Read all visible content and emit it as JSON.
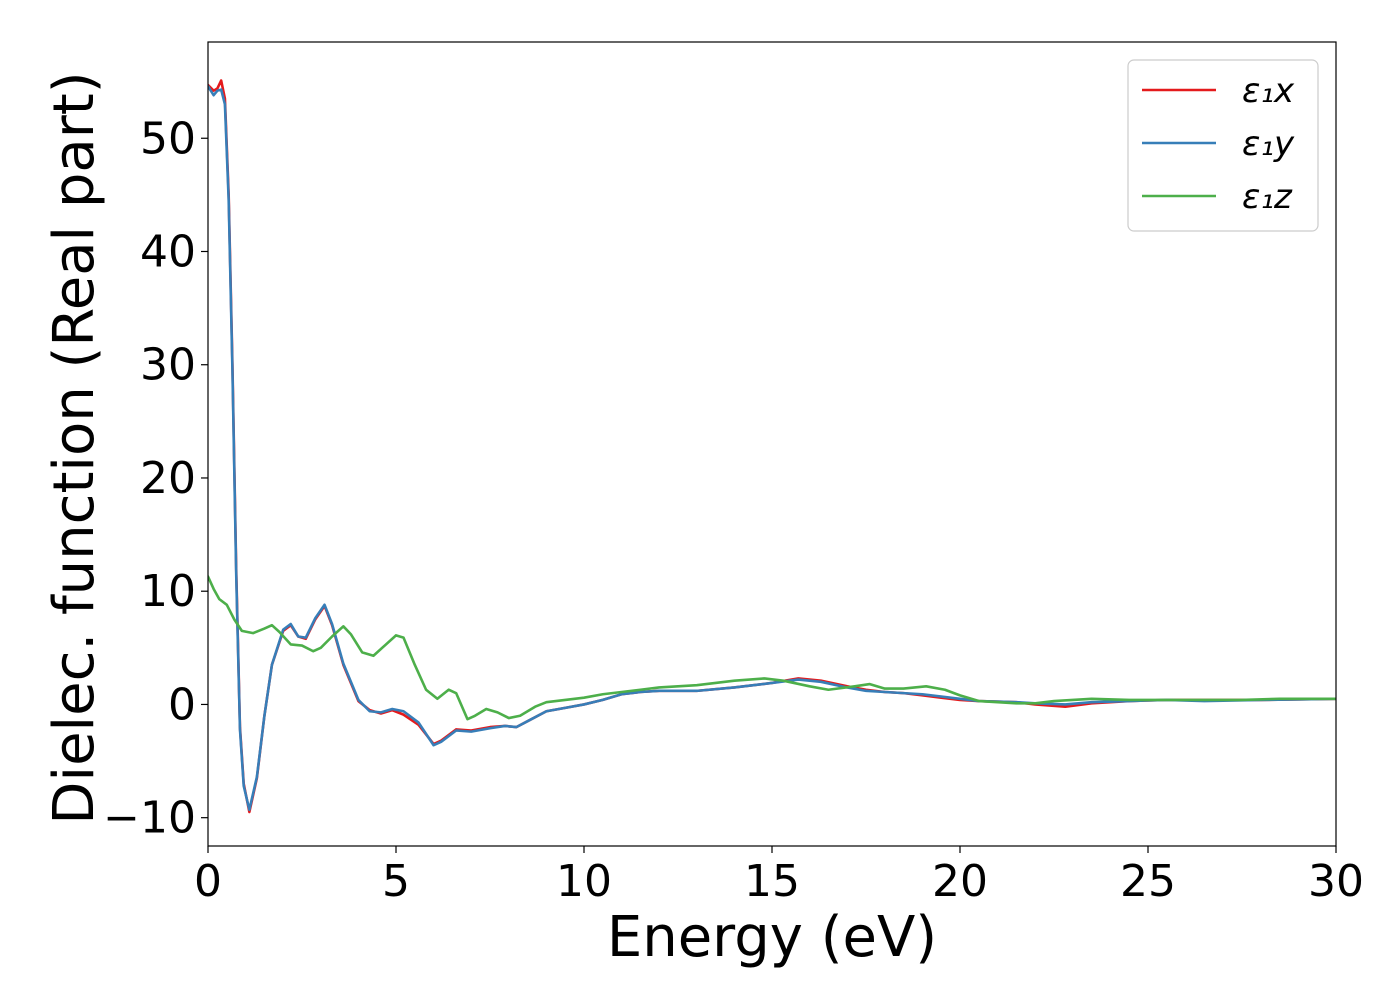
{
  "chart_data": {
    "type": "line",
    "title": "",
    "xlabel": "Energy (eV)",
    "ylabel": "Dielec. function (Real part)",
    "xlim": [
      0,
      30
    ],
    "ylim": [
      -12.5,
      58.5
    ],
    "xticks": [
      0,
      5,
      10,
      15,
      20,
      25,
      30
    ],
    "xtick_labels": [
      "0",
      "5",
      "10",
      "15",
      "20",
      "25",
      "30"
    ],
    "yticks": [
      -10,
      0,
      10,
      20,
      30,
      40,
      50
    ],
    "ytick_labels": [
      "−10",
      "0",
      "10",
      "20",
      "30",
      "40",
      "50"
    ],
    "grid": false,
    "legend_position": "upper-right",
    "series": [
      {
        "name": "ε₁x",
        "color": "#e41a1c",
        "points": [
          [
            0,
            54.7
          ],
          [
            0.15,
            54.2
          ],
          [
            0.25,
            54.4
          ],
          [
            0.35,
            55.1
          ],
          [
            0.45,
            53.5
          ],
          [
            0.55,
            45
          ],
          [
            0.65,
            30
          ],
          [
            0.75,
            12
          ],
          [
            0.85,
            -2
          ],
          [
            0.95,
            -7
          ],
          [
            1.1,
            -9.5
          ],
          [
            1.3,
            -6.5
          ],
          [
            1.5,
            -1
          ],
          [
            1.7,
            3.5
          ],
          [
            2.0,
            6.5
          ],
          [
            2.2,
            7.0
          ],
          [
            2.4,
            6.0
          ],
          [
            2.6,
            5.8
          ],
          [
            2.85,
            7.5
          ],
          [
            3.1,
            8.7
          ],
          [
            3.3,
            7.0
          ],
          [
            3.6,
            3.5
          ],
          [
            4.0,
            0.3
          ],
          [
            4.3,
            -0.5
          ],
          [
            4.6,
            -0.8
          ],
          [
            4.9,
            -0.5
          ],
          [
            5.2,
            -0.9
          ],
          [
            5.6,
            -1.8
          ],
          [
            6.0,
            -3.5
          ],
          [
            6.2,
            -3.2
          ],
          [
            6.6,
            -2.2
          ],
          [
            7.0,
            -2.3
          ],
          [
            7.5,
            -2.0
          ],
          [
            7.9,
            -1.9
          ],
          [
            8.2,
            -2.0
          ],
          [
            8.6,
            -1.3
          ],
          [
            9.0,
            -0.6
          ],
          [
            9.5,
            -0.3
          ],
          [
            10.0,
            0.0
          ],
          [
            10.5,
            0.4
          ],
          [
            11.0,
            0.9
          ],
          [
            11.5,
            1.1
          ],
          [
            12.0,
            1.2
          ],
          [
            13.0,
            1.2
          ],
          [
            14.0,
            1.5
          ],
          [
            15.0,
            1.9
          ],
          [
            15.7,
            2.3
          ],
          [
            16.3,
            2.1
          ],
          [
            17.0,
            1.6
          ],
          [
            17.5,
            1.3
          ],
          [
            18.0,
            1.1
          ],
          [
            18.5,
            1.0
          ],
          [
            19.0,
            0.8
          ],
          [
            19.5,
            0.6
          ],
          [
            20.0,
            0.4
          ],
          [
            20.5,
            0.3
          ],
          [
            21.5,
            0.2
          ],
          [
            22.0,
            0.0
          ],
          [
            22.8,
            -0.2
          ],
          [
            23.5,
            0.1
          ],
          [
            24.5,
            0.3
          ],
          [
            25.5,
            0.4
          ],
          [
            26.5,
            0.4
          ],
          [
            28.0,
            0.4
          ],
          [
            30.0,
            0.5
          ]
        ]
      },
      {
        "name": "ε₁y",
        "color": "#377eb8",
        "points": [
          [
            0,
            54.6
          ],
          [
            0.15,
            53.8
          ],
          [
            0.25,
            54.2
          ],
          [
            0.35,
            54.3
          ],
          [
            0.45,
            53.0
          ],
          [
            0.55,
            44.5
          ],
          [
            0.65,
            29.5
          ],
          [
            0.75,
            11.5
          ],
          [
            0.85,
            -2.2
          ],
          [
            0.95,
            -7.2
          ],
          [
            1.1,
            -9.3
          ],
          [
            1.3,
            -6.4
          ],
          [
            1.5,
            -1
          ],
          [
            1.7,
            3.5
          ],
          [
            2.0,
            6.6
          ],
          [
            2.2,
            7.1
          ],
          [
            2.4,
            6.0
          ],
          [
            2.6,
            5.9
          ],
          [
            2.85,
            7.6
          ],
          [
            3.1,
            8.8
          ],
          [
            3.3,
            7.1
          ],
          [
            3.6,
            3.6
          ],
          [
            4.0,
            0.4
          ],
          [
            4.3,
            -0.6
          ],
          [
            4.6,
            -0.7
          ],
          [
            4.9,
            -0.4
          ],
          [
            5.2,
            -0.6
          ],
          [
            5.6,
            -1.6
          ],
          [
            6.0,
            -3.6
          ],
          [
            6.2,
            -3.3
          ],
          [
            6.6,
            -2.3
          ],
          [
            7.0,
            -2.4
          ],
          [
            7.5,
            -2.1
          ],
          [
            7.9,
            -1.9
          ],
          [
            8.2,
            -2.0
          ],
          [
            8.6,
            -1.3
          ],
          [
            9.0,
            -0.6
          ],
          [
            9.5,
            -0.3
          ],
          [
            10.0,
            0.0
          ],
          [
            10.5,
            0.4
          ],
          [
            11.0,
            0.9
          ],
          [
            11.5,
            1.1
          ],
          [
            12.0,
            1.2
          ],
          [
            13.0,
            1.2
          ],
          [
            14.0,
            1.5
          ],
          [
            15.0,
            1.9
          ],
          [
            15.7,
            2.2
          ],
          [
            16.3,
            2.0
          ],
          [
            17.0,
            1.5
          ],
          [
            17.5,
            1.2
          ],
          [
            18.0,
            1.1
          ],
          [
            18.5,
            1.0
          ],
          [
            19.0,
            0.9
          ],
          [
            19.5,
            0.7
          ],
          [
            20.0,
            0.5
          ],
          [
            20.5,
            0.3
          ],
          [
            21.5,
            0.2
          ],
          [
            22.0,
            0.1
          ],
          [
            22.8,
            0.0
          ],
          [
            23.5,
            0.2
          ],
          [
            24.5,
            0.3
          ],
          [
            25.5,
            0.4
          ],
          [
            26.5,
            0.3
          ],
          [
            28.0,
            0.4
          ],
          [
            30.0,
            0.5
          ]
        ]
      },
      {
        "name": "ε₁z",
        "color": "#4daf4a",
        "points": [
          [
            0,
            11.3
          ],
          [
            0.15,
            10.2
          ],
          [
            0.3,
            9.3
          ],
          [
            0.5,
            8.8
          ],
          [
            0.7,
            7.5
          ],
          [
            0.9,
            6.5
          ],
          [
            1.2,
            6.3
          ],
          [
            1.5,
            6.7
          ],
          [
            1.7,
            7.0
          ],
          [
            1.9,
            6.4
          ],
          [
            2.2,
            5.3
          ],
          [
            2.5,
            5.2
          ],
          [
            2.8,
            4.7
          ],
          [
            3.0,
            5.0
          ],
          [
            3.3,
            6.0
          ],
          [
            3.6,
            6.9
          ],
          [
            3.8,
            6.2
          ],
          [
            4.1,
            4.6
          ],
          [
            4.4,
            4.3
          ],
          [
            4.7,
            5.2
          ],
          [
            5.0,
            6.1
          ],
          [
            5.2,
            5.9
          ],
          [
            5.5,
            3.5
          ],
          [
            5.8,
            1.3
          ],
          [
            6.1,
            0.5
          ],
          [
            6.4,
            1.3
          ],
          [
            6.6,
            1.0
          ],
          [
            6.9,
            -1.3
          ],
          [
            7.1,
            -1.0
          ],
          [
            7.4,
            -0.4
          ],
          [
            7.7,
            -0.7
          ],
          [
            8.0,
            -1.2
          ],
          [
            8.3,
            -1.0
          ],
          [
            8.7,
            -0.2
          ],
          [
            9.0,
            0.2
          ],
          [
            9.5,
            0.4
          ],
          [
            10.0,
            0.6
          ],
          [
            10.5,
            0.9
          ],
          [
            11.0,
            1.1
          ],
          [
            11.5,
            1.3
          ],
          [
            12.0,
            1.5
          ],
          [
            13.0,
            1.7
          ],
          [
            14.0,
            2.1
          ],
          [
            14.8,
            2.3
          ],
          [
            15.3,
            2.1
          ],
          [
            16.0,
            1.6
          ],
          [
            16.5,
            1.3
          ],
          [
            17.2,
            1.6
          ],
          [
            17.6,
            1.8
          ],
          [
            18.0,
            1.4
          ],
          [
            18.5,
            1.4
          ],
          [
            19.1,
            1.6
          ],
          [
            19.6,
            1.3
          ],
          [
            20.0,
            0.8
          ],
          [
            20.5,
            0.3
          ],
          [
            21.0,
            0.2
          ],
          [
            21.5,
            0.1
          ],
          [
            22.0,
            0.1
          ],
          [
            22.5,
            0.3
          ],
          [
            23.5,
            0.5
          ],
          [
            24.5,
            0.4
          ],
          [
            25.5,
            0.4
          ],
          [
            26.5,
            0.4
          ],
          [
            27.5,
            0.4
          ],
          [
            28.5,
            0.5
          ],
          [
            30.0,
            0.5
          ]
        ]
      }
    ]
  }
}
